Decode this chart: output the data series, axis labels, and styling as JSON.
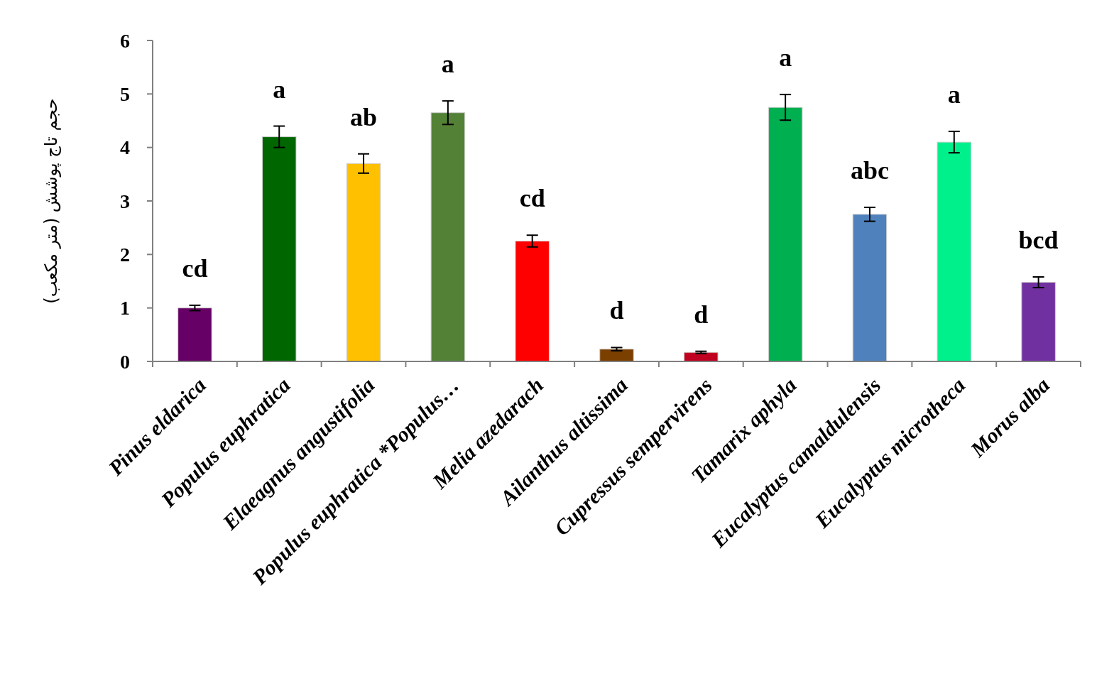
{
  "chart_data": {
    "type": "bar",
    "ylabel": "حجم تاج پوشش (متر مکعب)",
    "categories": [
      "Pinus eldarica",
      "Populus euphratica",
      "Elaeagnus angustifolia",
      "Populus euphratica *Populus…",
      "Melia azedarach",
      "Ailanthus altissima",
      "Cupressus sempervirens",
      "Tamarix aphyla",
      "Eucalyptus camaldulensis",
      "Eucalyptus microtheca",
      "Morus alba"
    ],
    "values": [
      1.0,
      4.2,
      3.7,
      4.65,
      2.25,
      0.23,
      0.17,
      4.75,
      2.75,
      4.1,
      1.48
    ],
    "errors": [
      0.05,
      0.2,
      0.18,
      0.22,
      0.11,
      0.03,
      0.02,
      0.24,
      0.13,
      0.2,
      0.1
    ],
    "colors": [
      "#660066",
      "#006600",
      "#ffc000",
      "#538135",
      "#ff0000",
      "#7b3f00",
      "#c00020",
      "#00b050",
      "#4f81bd",
      "#00f08c",
      "#7030a0"
    ],
    "ylim": [
      0,
      6
    ],
    "yticks": [
      0,
      1,
      2,
      3,
      4,
      5,
      6
    ],
    "annotations": [
      "cd",
      "a",
      "ab",
      "a",
      "cd",
      "d",
      "d",
      "a",
      "abc",
      "a",
      "bcd"
    ]
  }
}
